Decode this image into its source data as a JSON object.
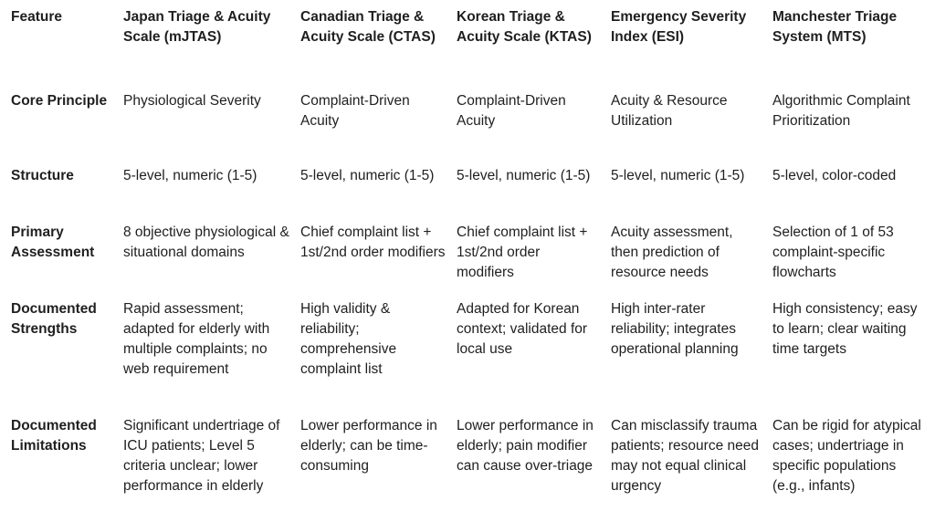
{
  "table": {
    "headers": [
      "Feature",
      "Japan Triage & Acuity Scale (mJTAS)",
      "Canadian Triage & Acuity Scale (CTAS)",
      "Korean Triage & Acuity Scale (KTAS)",
      "Emergency Severity Index (ESI)",
      "Manchester Triage System (MTS)"
    ],
    "rows": [
      {
        "label": "Core Principle",
        "cells": [
          "Physiological Severity",
          "Complaint-Driven Acuity",
          "Complaint-Driven Acuity",
          "Acuity & Resource Utilization",
          "Algorithmic Complaint Prioritization"
        ]
      },
      {
        "label": "Structure",
        "cells": [
          "5-level, numeric (1-5)",
          "5-level, numeric (1-5)",
          "5-level, numeric (1-5)",
          "5-level, numeric (1-5)",
          "5-level, color-coded"
        ]
      },
      {
        "label": "Primary Assessment",
        "cells": [
          "8 objective physiological & situational domains",
          "Chief complaint list + 1st/2nd order modifiers",
          "Chief complaint list + 1st/2nd order modifiers",
          "Acuity assessment, then prediction of resource needs",
          "Selection of 1 of 53 complaint-specific flowcharts"
        ]
      },
      {
        "label": "Documented Strengths",
        "cells": [
          "Rapid assessment; adapted for elderly with multiple complaints; no web requirement",
          "High validity & reliability; comprehensive complaint list",
          "Adapted for Korean context; validated for local use",
          "High inter-rater reliability; integrates operational planning",
          "High consistency; easy to learn; clear waiting time targets"
        ]
      },
      {
        "label": "Documented Limitations",
        "cells": [
          "Significant undertriage of ICU patients; Level 5 criteria unclear; lower performance in elderly",
          "Lower performance in elderly; can be time-consuming",
          "Lower performance in elderly; pain modifier can cause over-triage",
          "Can misclassify trauma patients; resource need may not equal clinical urgency",
          "Can be rigid for atypical cases; undertriage in specific populations (e.g., infants)"
        ]
      }
    ]
  }
}
